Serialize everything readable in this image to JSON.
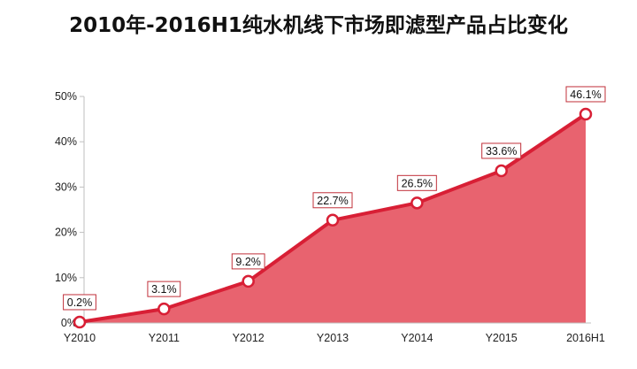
{
  "chart_data": {
    "type": "area",
    "title": "2010年-2016H1纯水机线下市场即滤型产品占比变化",
    "xlabel": "",
    "ylabel": "",
    "categories": [
      "Y2010",
      "Y2011",
      "Y2012",
      "Y2013",
      "Y2014",
      "Y2015",
      "2016H1"
    ],
    "series": [
      {
        "values": [
          0.2,
          3.1,
          9.2,
          22.7,
          26.5,
          33.6,
          46.1
        ]
      }
    ],
    "data_labels": [
      "0.2%",
      "3.1%",
      "9.2%",
      "22.7%",
      "26.5%",
      "33.6%",
      "46.1%"
    ],
    "ylim": [
      0,
      50
    ],
    "yticks": [
      0,
      10,
      20,
      30,
      40,
      50
    ],
    "ytick_labels": [
      "0%",
      "10%",
      "20%",
      "30%",
      "40%",
      "50%"
    ],
    "grid": false,
    "legend": "none",
    "colors": {
      "fill": "#e8636f",
      "line": "#d81f35",
      "label_border": "#c0303a",
      "axis": "#bfbfbf"
    }
  }
}
